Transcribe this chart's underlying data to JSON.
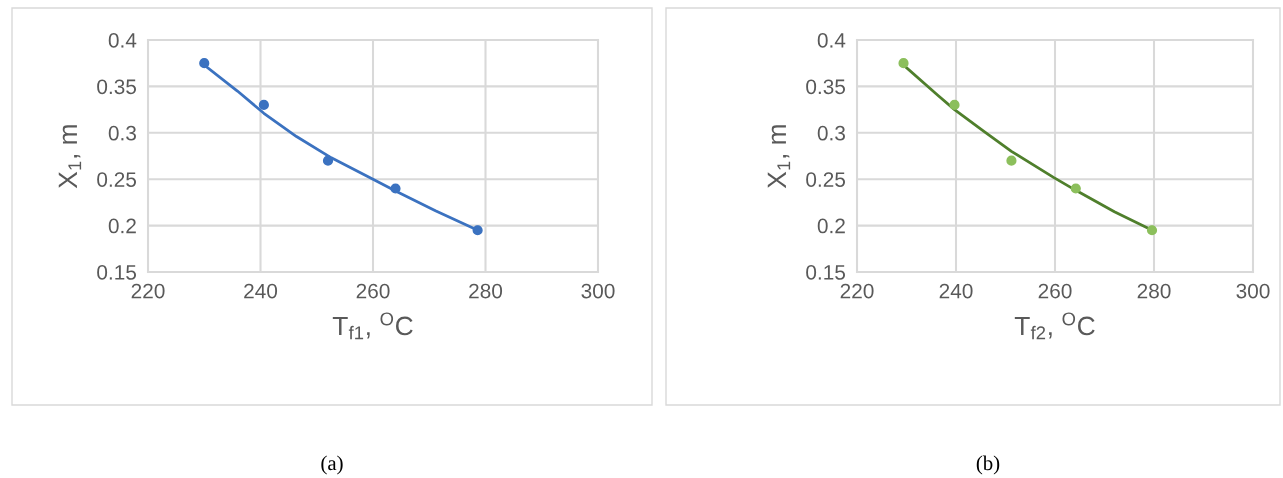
{
  "chart_data": [
    {
      "type": "line",
      "xlabel": "T$_{f1}$, $^{O}$C",
      "ylabel": "X$_{1}$, m",
      "xlim": [
        220,
        300
      ],
      "xticks": [
        220,
        240,
        260,
        280,
        300
      ],
      "ylim": [
        0.15,
        0.4
      ],
      "yticks": [
        0.15,
        0.2,
        0.25,
        0.3,
        0.35,
        0.4
      ],
      "grid": true,
      "annotations": [
        "(a)"
      ],
      "series": [
        {
          "type": "scatter",
          "marker": "circle",
          "color": "#3b72c0",
          "x": [
            230,
            240.6,
            252,
            264,
            278.6
          ],
          "values": [
            0.375,
            0.33,
            0.27,
            0.24,
            0.195
          ]
        },
        {
          "marker": "none",
          "color": "#3b72c0",
          "x": [
            230,
            235.9,
            240.6,
            246.4,
            252.6,
            260,
            264.1,
            271.1,
            278.6
          ],
          "values": [
            0.373,
            0.345,
            0.321,
            0.296,
            0.273,
            0.25,
            0.237,
            0.216,
            0.195
          ]
        }
      ]
    },
    {
      "type": "line",
      "xlabel": "T$_{f2}$, $^{O}$C",
      "ylabel": "X$_{1}$, m",
      "xlim": [
        220,
        300
      ],
      "xticks": [
        220,
        240,
        260,
        280,
        300
      ],
      "ylim": [
        0.15,
        0.4
      ],
      "yticks": [
        0.15,
        0.2,
        0.25,
        0.3,
        0.35,
        0.4
      ],
      "grid": true,
      "annotations": [
        "(b)"
      ],
      "series": [
        {
          "type": "scatter",
          "marker": "circle",
          "color": "#8cbf5c",
          "x": [
            229.4,
            239.7,
            251.2,
            264.2,
            279.6
          ],
          "values": [
            0.375,
            0.33,
            0.27,
            0.24,
            0.195
          ]
        },
        {
          "marker": "none",
          "color": "#4f7f2c",
          "x": [
            229.4,
            236.2,
            239.7,
            245.5,
            251.2,
            259.7,
            264.2,
            272,
            279.6
          ],
          "values": [
            0.373,
            0.341,
            0.325,
            0.302,
            0.28,
            0.252,
            0.238,
            0.215,
            0.195
          ]
        }
      ]
    }
  ]
}
